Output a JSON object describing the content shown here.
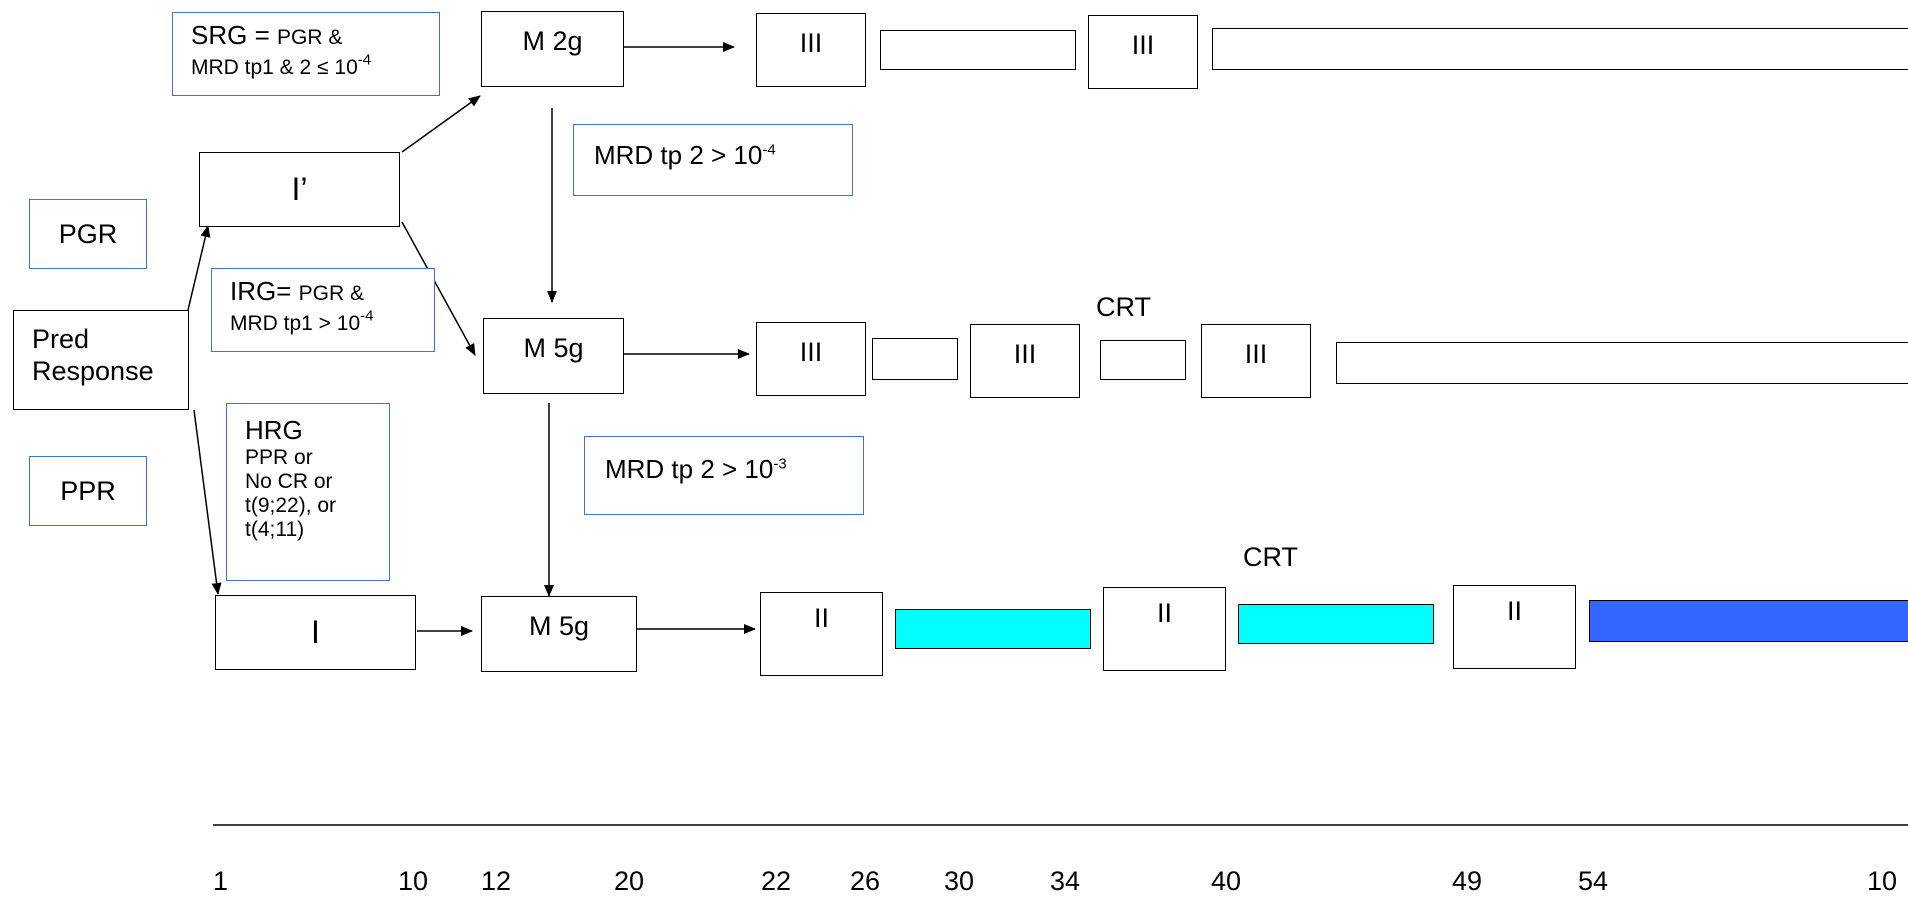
{
  "nodes": {
    "i_prime": "I’",
    "m2g": "M 2g",
    "m5g_mid": "M 5g",
    "i": "I",
    "m5g_low": "M 5g",
    "pred_response": "Pred\nResponse",
    "pgr": "PGR",
    "ppr": "PPR"
  },
  "phases": {
    "top": [
      "III",
      "III"
    ],
    "mid": [
      "III",
      "III",
      "III"
    ],
    "low": [
      "II",
      "II",
      "II"
    ]
  },
  "crt_mid": "CRT",
  "crt_low": "CRT",
  "notes": {
    "srg": {
      "head": "SRG = ",
      "l1": "PGR &",
      "l2": "MRD tp1 & 2 ≤ 10",
      "exp": "-4"
    },
    "irg": {
      "head": "IRG= ",
      "l1": "PGR &",
      "l2": "MRD tp1 > 10",
      "exp": "-4"
    },
    "hrg": {
      "head": "HRG",
      "l1": "PPR or",
      "l2": "No CR or",
      "l3": "t(9;22), or",
      "l4": "t(4;11)"
    },
    "mrd4": {
      "text": "MRD tp 2 > 10",
      "exp": "-4"
    },
    "mrd3": {
      "text": "MRD tp 2 > 10",
      "exp": "-3"
    }
  },
  "timeline_ticks": [
    "1",
    "10",
    "12",
    "20",
    "22",
    "26",
    "30",
    "34",
    "40",
    "49",
    "54",
    "10"
  ],
  "colors": {
    "cyan": "#00ffff",
    "blue": "#3366ff",
    "note_border": "#4472c4"
  }
}
